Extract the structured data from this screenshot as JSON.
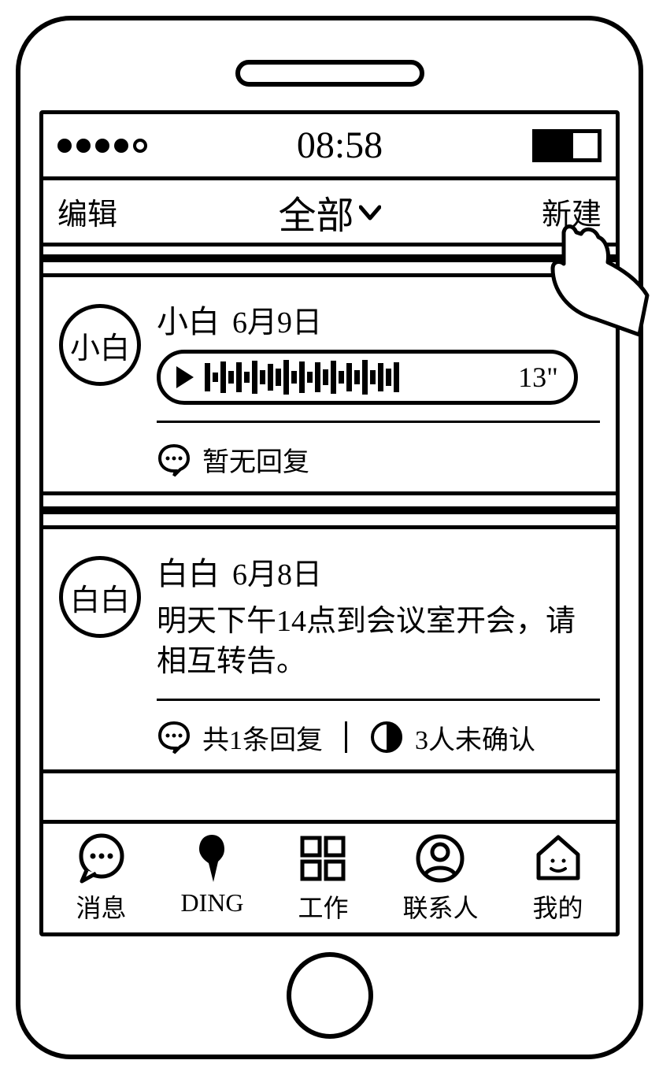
{
  "status": {
    "time": "08:58",
    "signal_filled": 4,
    "signal_total": 5,
    "battery_pct": 60
  },
  "nav": {
    "left": "编辑",
    "title": "全部",
    "right": "新建"
  },
  "cards": [
    {
      "avatar": "小白",
      "name": "小白",
      "date": "6月9日",
      "type": "voice",
      "voice_duration": "13\"",
      "reply_text": "暂无回复"
    },
    {
      "avatar": "白白",
      "name": "白白",
      "date": "6月8日",
      "type": "text",
      "message": "明天下午14点到会议室开会，请相互转告。",
      "reply_text": "共1条回复",
      "confirm_text": "3人未确认"
    }
  ],
  "tabs": {
    "messages": "消息",
    "ding": "DING",
    "work": "工作",
    "contacts": "联系人",
    "mine": "我的"
  },
  "wave_bars": [
    36,
    12,
    40,
    16,
    38,
    14,
    42,
    18,
    34,
    22,
    44,
    16,
    40,
    14,
    38,
    20,
    42,
    16,
    36,
    18,
    44,
    18,
    36,
    22,
    38
  ]
}
